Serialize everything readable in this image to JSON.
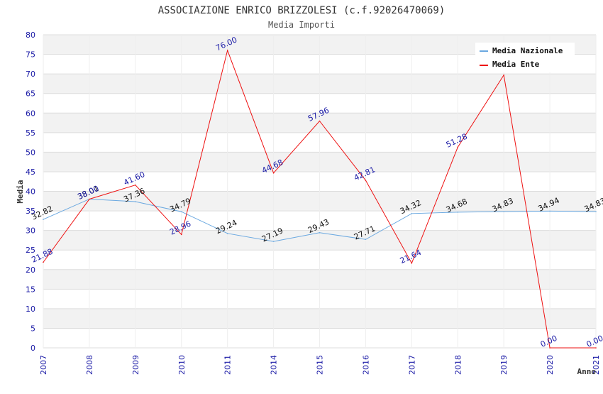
{
  "title": "ASSOCIAZIONE ENRICO BRIZZOLESI (c.f.92026470069)",
  "subtitle": "Media Importi",
  "colors": {
    "band": "#f2f2f2",
    "grid": "#dddddd",
    "media_nazionale": "#6aa8e0",
    "media_ente": "#ee1111",
    "ticks": "#1a1aa6"
  },
  "chart_data": {
    "type": "line",
    "xlabel": "Anno",
    "ylabel": "Media",
    "ylim": [
      0,
      80
    ],
    "yticks": [
      0,
      5,
      10,
      15,
      20,
      25,
      30,
      35,
      40,
      45,
      50,
      55,
      60,
      65,
      70,
      75,
      80
    ],
    "categories": [
      "2007",
      "2008",
      "2009",
      "2010",
      "2011",
      "2014",
      "2015",
      "2016",
      "2017",
      "2018",
      "2019",
      "2020",
      "2021"
    ],
    "legend_position": "top-right",
    "grid": true,
    "series": [
      {
        "name": "Media Nazionale",
        "values": [
          32.82,
          38.01,
          37.36,
          34.79,
          29.24,
          27.19,
          29.43,
          27.71,
          34.32,
          34.68,
          34.83,
          34.94,
          34.83
        ],
        "labels": [
          "32.82",
          "38.01",
          "37.36",
          "34.79",
          "29.24",
          "27.19",
          "29.43",
          "27.71",
          "34.32",
          "34.68",
          "34.83",
          "34.94",
          "34.83"
        ]
      },
      {
        "name": "Media Ente",
        "values": [
          21.88,
          38.0,
          41.6,
          28.96,
          76.0,
          44.68,
          57.96,
          42.81,
          21.64,
          51.28,
          69.7,
          0.0,
          0.0
        ],
        "labels": [
          "21.88",
          "38.00",
          "41.60",
          "28.96",
          "76.00",
          "44.68",
          "57.96",
          "42.81",
          "21.64",
          "51.28",
          null,
          "0.00",
          "0.00"
        ]
      }
    ]
  }
}
